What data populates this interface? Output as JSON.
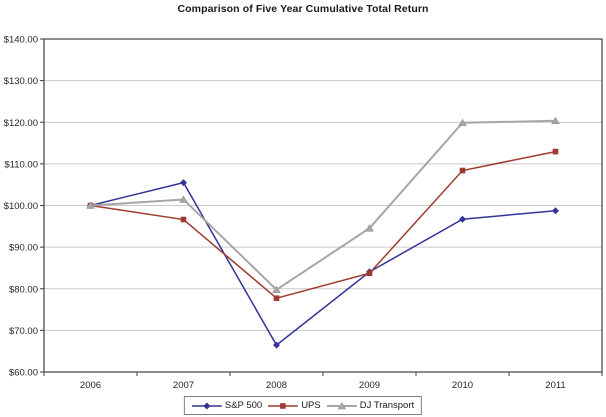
{
  "chart_data": {
    "type": "line",
    "title": "Comparison of Five Year Cumulative Total Return",
    "categories": [
      "2006",
      "2007",
      "2008",
      "2009",
      "2010",
      "2011"
    ],
    "series": [
      {
        "name": "S&P 500",
        "marker": "diamond",
        "color": "#333399",
        "values": [
          100.0,
          105.49,
          66.46,
          84.05,
          96.71,
          98.75
        ]
      },
      {
        "name": "UPS",
        "marker": "square",
        "color": "#9E3B2E",
        "values": [
          100.0,
          96.63,
          77.73,
          83.73,
          108.4,
          112.95
        ]
      },
      {
        "name": "DJ Transport",
        "marker": "triangle",
        "color": "#A6A6A6",
        "values": [
          100.0,
          101.45,
          79.77,
          94.54,
          119.87,
          120.35
        ]
      }
    ],
    "y_axis": {
      "min": 60,
      "max": 140,
      "step": 10,
      "tick_labels": [
        "$60.00",
        "$70.00",
        "$80.00",
        "$90.00",
        "$100.00",
        "$110.00",
        "$120.00",
        "$130.00",
        "$140.00"
      ]
    },
    "x_axis": {
      "tick_labels": [
        "2006",
        "2007",
        "2008",
        "2009",
        "2010",
        "2011"
      ]
    },
    "grid": "horizontal",
    "legend_position": "bottom-center",
    "colors": {
      "background": "#ffffff",
      "gridline": "#c9c9c9",
      "axis": "#3f3f3f",
      "text": "#262626",
      "legend_border": "#808080"
    }
  }
}
